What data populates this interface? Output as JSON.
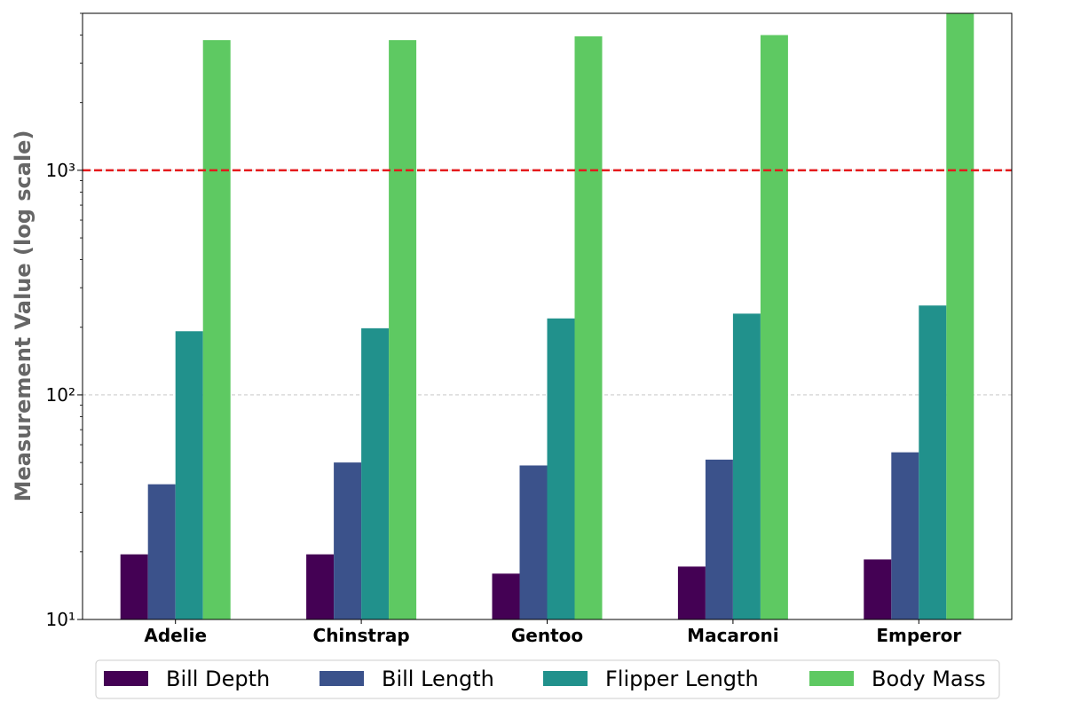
{
  "chart_data": {
    "type": "bar",
    "title": "",
    "xlabel": "",
    "ylabel": "Measurement Value (log scale)",
    "yscale": "log",
    "ylim": [
      10,
      5000
    ],
    "categories": [
      "Adelie",
      "Chinstrap",
      "Gentoo",
      "Macaroni",
      "Emperor"
    ],
    "series": [
      {
        "name": "Bill Depth",
        "color": "#440154",
        "values": [
          19.5,
          19.5,
          16.0,
          17.2,
          18.5
        ]
      },
      {
        "name": "Bill Length",
        "color": "#3b528b",
        "values": [
          40.0,
          50.0,
          48.5,
          51.5,
          55.5
        ]
      },
      {
        "name": "Flipper Length",
        "color": "#21918c",
        "values": [
          192,
          198,
          219,
          230,
          250
        ]
      },
      {
        "name": "Body Mass",
        "color": "#5ec962",
        "values": [
          3800,
          3800,
          3950,
          4000,
          5000
        ]
      }
    ],
    "reference_line": {
      "value": 1000,
      "color": "#e41a1c",
      "style": "dashed"
    },
    "y_ticks": [
      "10¹",
      "10²",
      "10³"
    ],
    "grid": "horizontal-major",
    "legend": {
      "placement": "bottom",
      "columns": 4
    }
  }
}
